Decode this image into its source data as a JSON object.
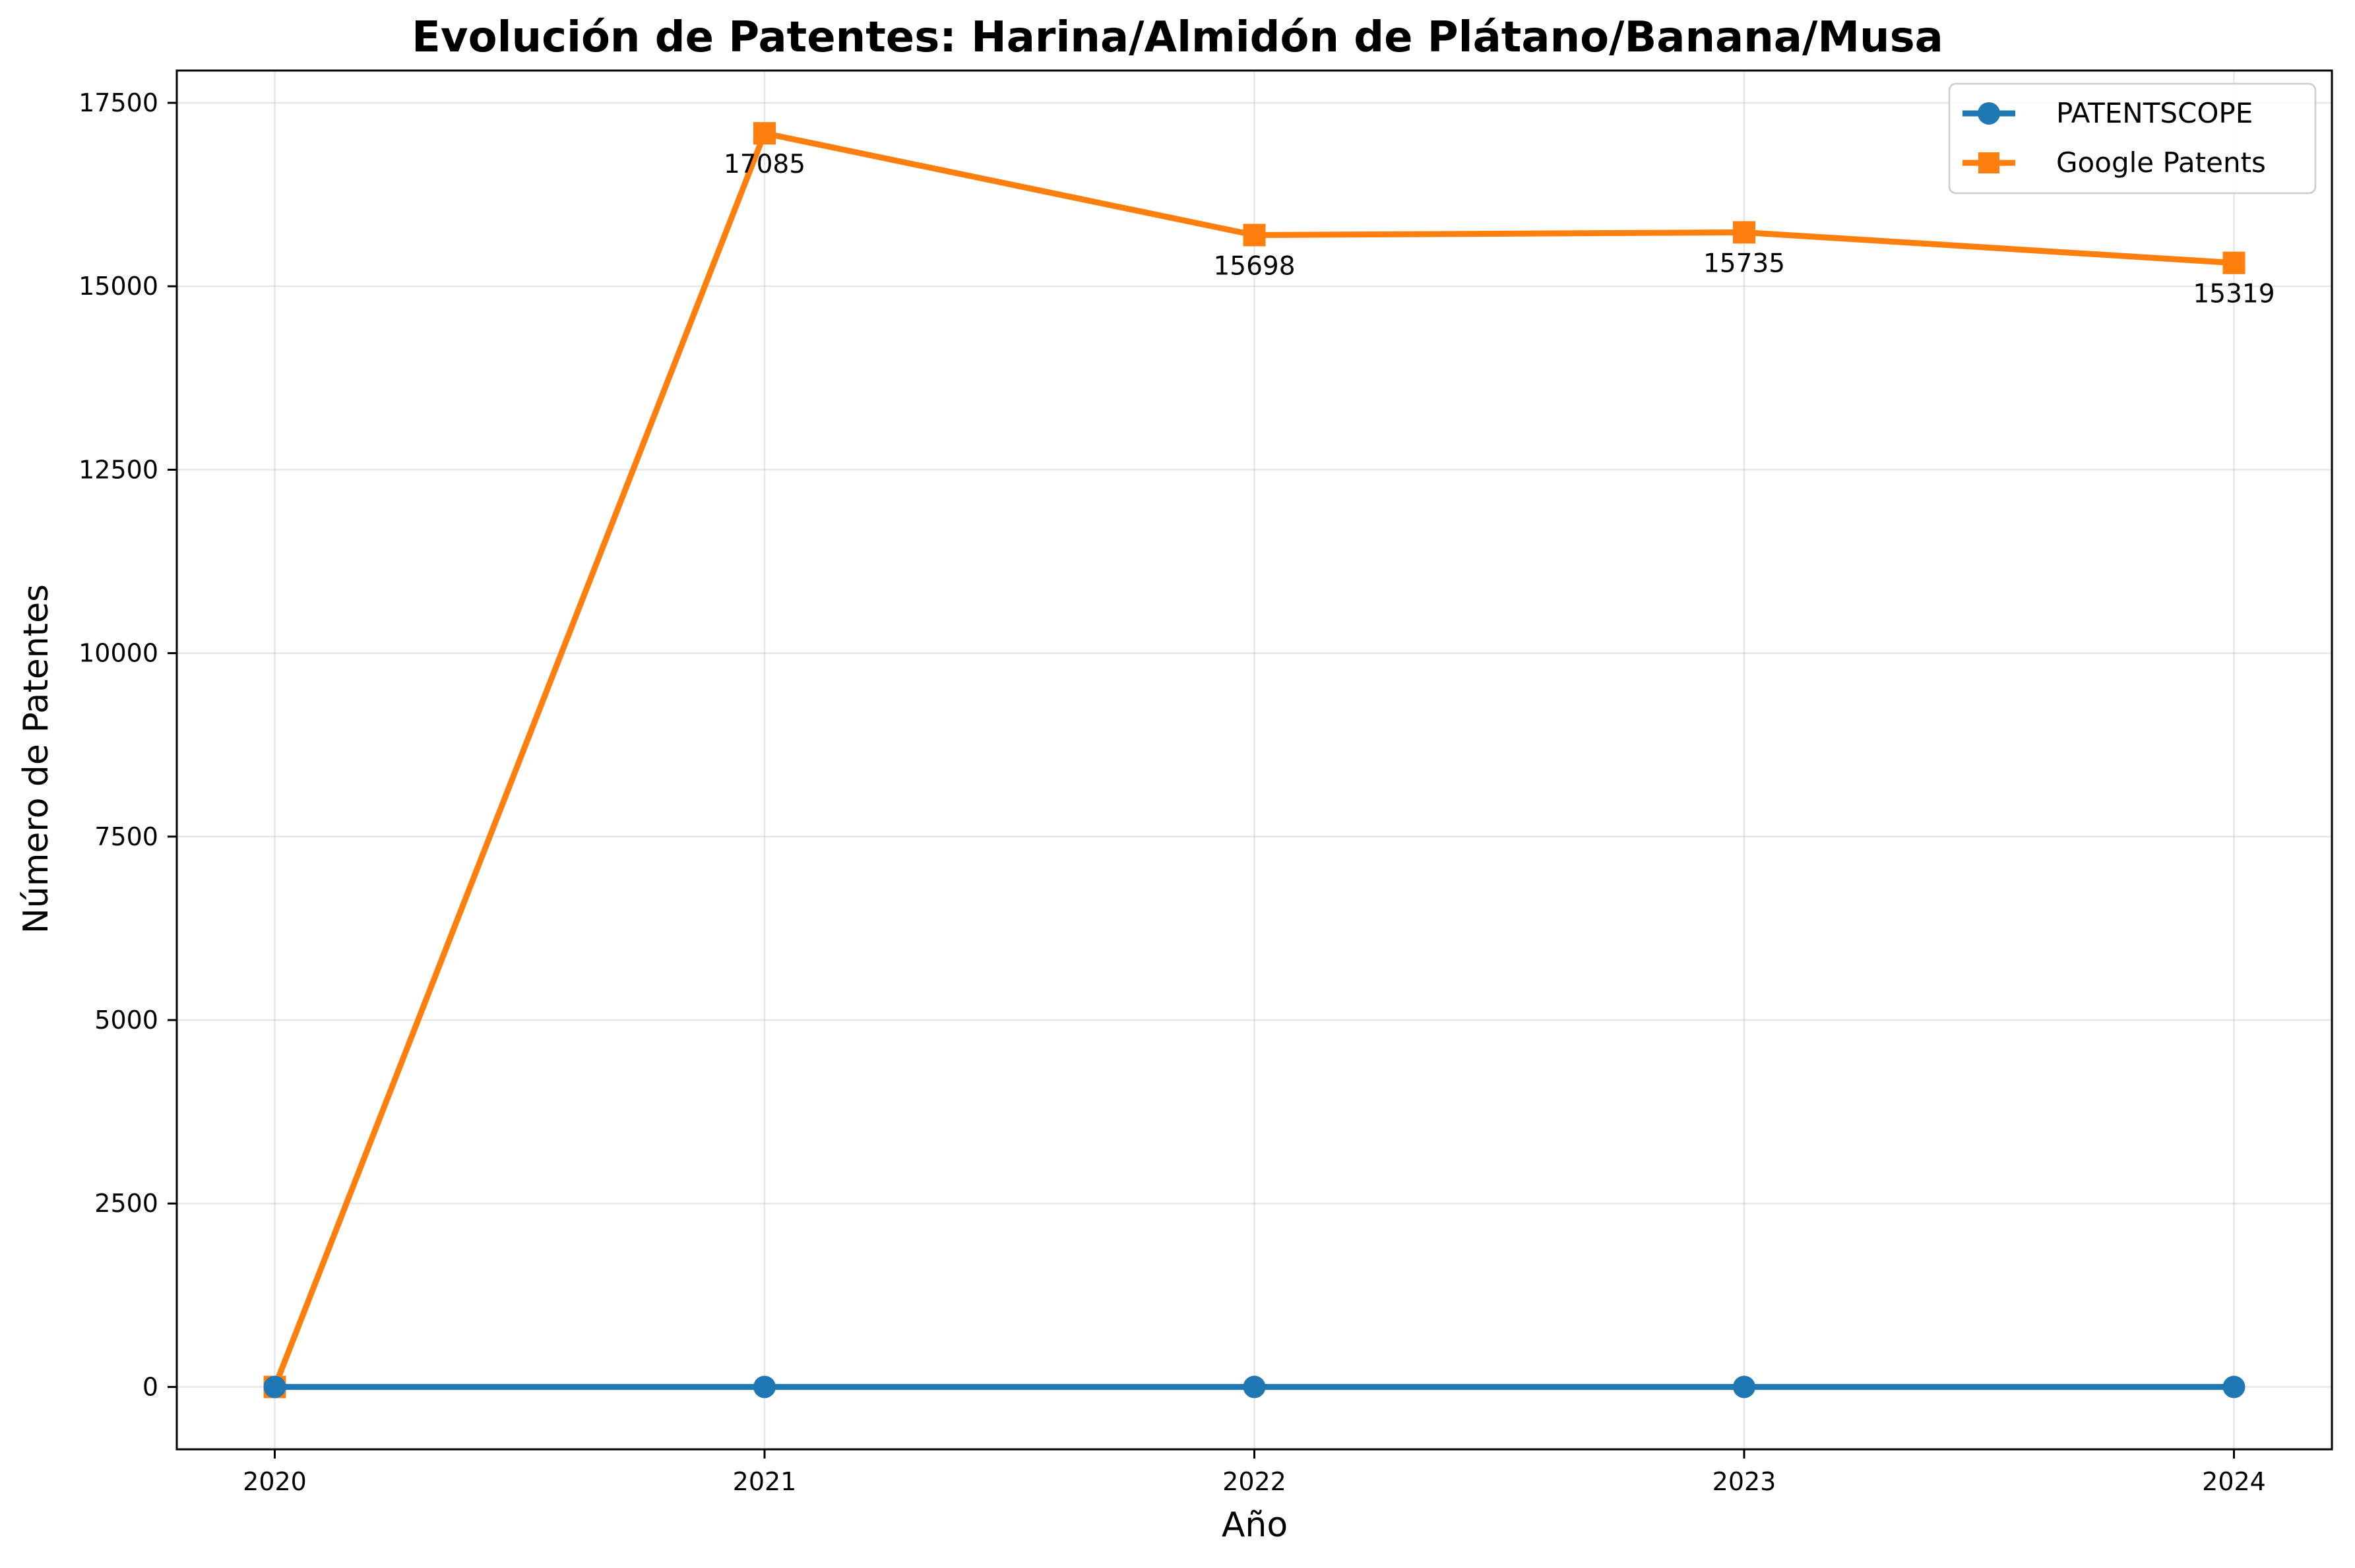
{
  "chart_data": {
    "type": "line",
    "title": "Evolución de Patentes: Harina/Almidón de Plátano/Banana/Musa",
    "xlabel": "Año",
    "ylabel": "Número de Patentes",
    "x": [
      2020,
      2021,
      2022,
      2023,
      2024
    ],
    "x_tick_labels": [
      "2020",
      "2021",
      "2022",
      "2023",
      "2024"
    ],
    "ylim": [
      -850,
      17940
    ],
    "y_ticks": [
      0,
      2500,
      5000,
      7500,
      10000,
      12500,
      15000,
      17500
    ],
    "y_tick_labels": [
      "0",
      "2500",
      "5000",
      "7500",
      "10000",
      "12500",
      "15000",
      "17500"
    ],
    "grid": true,
    "legend_position": "top-right",
    "series": [
      {
        "name": "PATENTSCOPE",
        "values": [
          0,
          0,
          0,
          0,
          0
        ],
        "color": "#1f77b4",
        "marker": "circle",
        "data_labels": []
      },
      {
        "name": "Google Patents",
        "values": [
          0,
          17085,
          15698,
          15735,
          15319
        ],
        "color": "#ff7f0e",
        "marker": "square",
        "data_labels": [
          "",
          "17085",
          "15698",
          "15735",
          "15319"
        ]
      }
    ]
  }
}
